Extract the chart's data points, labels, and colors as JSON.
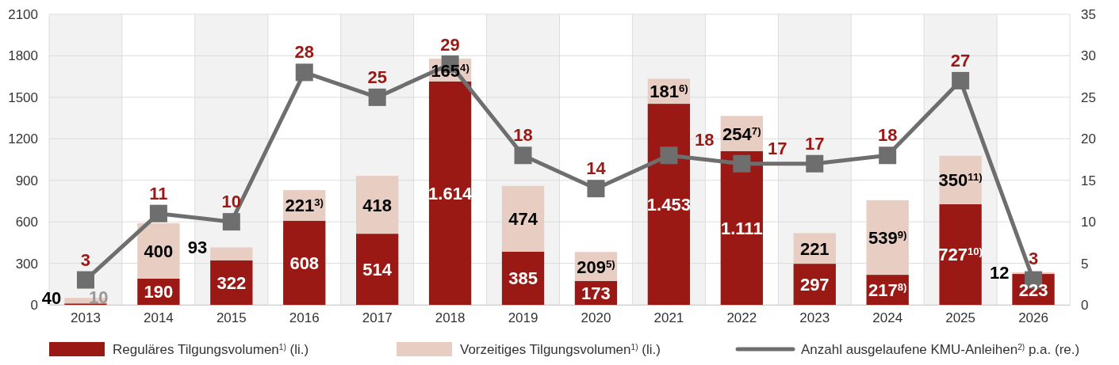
{
  "chart_data": {
    "type": "bar",
    "stacked": true,
    "categories": [
      "2013",
      "2014",
      "2015",
      "2016",
      "2017",
      "2018",
      "2019",
      "2020",
      "2021",
      "2022",
      "2023",
      "2024",
      "2025",
      "2026"
    ],
    "series": [
      {
        "name": "Reguläres Tilgungsvolumen$^{1)}$ (li.)",
        "color": "#9b1915",
        "values": [
          10,
          190,
          322,
          608,
          514,
          1614,
          385,
          173,
          1453,
          1111,
          297,
          217,
          727,
          223
        ],
        "value_labels": [
          "10",
          "190",
          "322",
          "608",
          "514",
          "1.614",
          "385",
          "173",
          "1.453",
          "1.111",
          "297",
          "217$^{8)}$",
          "727$^{10)}$",
          "223"
        ]
      },
      {
        "name": "Vorzeitiges Tilgungsvolumen$^{1)}$ (li.)",
        "color": "#e8cdc3",
        "values": [
          40,
          400,
          93,
          221,
          418,
          165,
          474,
          209,
          181,
          254,
          221,
          539,
          350,
          12
        ],
        "value_labels": [
          "40",
          "400",
          "93",
          "221$^{3)}$",
          "418",
          "165$^{4)}$",
          "474",
          "209$^{5)}$",
          "181$^{6)}$",
          "254$^{7)}$",
          "221",
          "539$^{9)}$",
          "350$^{11)}$",
          "12"
        ]
      },
      {
        "name": "Anzahl ausgelaufene KMU-Anleihen$^{2)}$ p.a. (re.)",
        "type": "line",
        "axis": "y2",
        "color": "#6e6e6e",
        "marker": "square",
        "values": [
          3,
          11,
          10,
          28,
          25,
          29,
          18,
          14,
          18,
          17,
          17,
          18,
          27,
          3
        ],
        "value_labels": [
          "3",
          "11",
          "10",
          "28",
          "25",
          "29",
          "18",
          "14",
          "18",
          "17",
          "17",
          "18",
          "27",
          "3"
        ]
      }
    ],
    "ylim": [
      0,
      2100
    ],
    "yticks": [
      0,
      300,
      600,
      900,
      1200,
      1500,
      1800,
      2100
    ],
    "y2lim": [
      0,
      35
    ],
    "y2ticks": [
      0,
      5,
      10,
      15,
      20,
      25,
      30,
      35
    ],
    "grid": true,
    "legend": "bottom"
  }
}
